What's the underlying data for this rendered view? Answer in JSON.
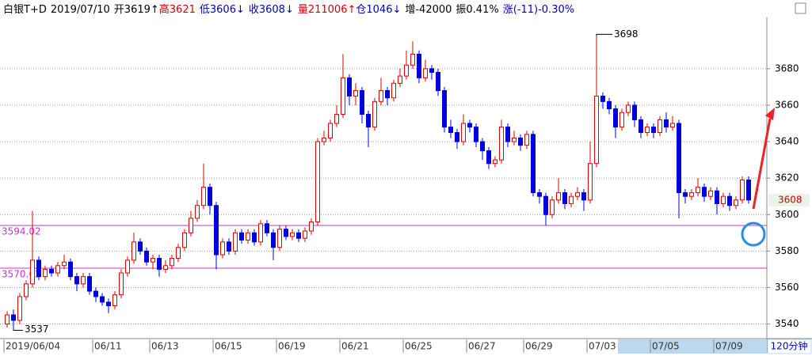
{
  "chart_data": {
    "type": "candlestick",
    "header": [
      {
        "text": "白银T+D",
        "color": "#000000"
      },
      {
        "text": "2019/07/10",
        "color": "#000000"
      },
      {
        "text": "开3619↑",
        "color": "#000000"
      },
      {
        "text": "高3621",
        "color": "#d00000"
      },
      {
        "text": "低3606↓",
        "color": "#0000c0"
      },
      {
        "text": "收3608↓",
        "color": "#0000c0"
      },
      {
        "text": "量211006↑",
        "color": "#d00000"
      },
      {
        "text": "仓1046↓",
        "color": "#0000c0"
      },
      {
        "text": "增-42000",
        "color": "#000000"
      },
      {
        "text": "振0.41%",
        "color": "#000000"
      },
      {
        "text": "涨(-11)-0.30%",
        "color": "#0000c0"
      }
    ],
    "period": "120分钟",
    "up_color": "#e00000",
    "down_color": "#0000dd",
    "ylim": [
      3532,
      3709
    ],
    "yticks": [
      3540,
      3560,
      3580,
      3600,
      3620,
      3640,
      3660,
      3680
    ],
    "grid": true,
    "hlines": [
      3594.02,
      3570.62
    ],
    "hline_color": "#cc33cc",
    "categories": [
      "2019/06/04",
      null,
      null,
      null,
      null,
      null,
      null,
      null,
      null,
      null,
      null,
      null,
      null,
      null,
      "06/11",
      null,
      null,
      null,
      null,
      null,
      null,
      null,
      null,
      "06/13",
      null,
      null,
      null,
      null,
      null,
      null,
      null,
      null,
      null,
      "06/15",
      null,
      null,
      null,
      null,
      null,
      null,
      null,
      null,
      null,
      "06/19",
      null,
      null,
      null,
      null,
      null,
      null,
      null,
      null,
      null,
      "06/21",
      null,
      null,
      null,
      null,
      null,
      null,
      null,
      null,
      null,
      "06/25",
      null,
      null,
      null,
      null,
      null,
      null,
      null,
      null,
      null,
      "06/27",
      null,
      null,
      null,
      null,
      null,
      null,
      null,
      null,
      "06/29",
      null,
      null,
      null,
      null,
      null,
      null,
      null,
      null,
      null,
      "07/03",
      null,
      null,
      null,
      null,
      null,
      null,
      null,
      null,
      null,
      "07/05",
      null,
      null,
      null,
      null,
      null,
      null,
      null,
      null,
      null,
      "07/09",
      null,
      null,
      null,
      null,
      null
    ],
    "open": [
      3540,
      3545,
      3542,
      3555,
      3562,
      3575,
      3566,
      3570,
      3568,
      3572,
      3574,
      3566,
      3562,
      3566,
      3558,
      3555,
      3552,
      3550,
      3556,
      3568,
      3575,
      3585,
      3580,
      3574,
      3576,
      3570,
      3572,
      3576,
      3582,
      3590,
      3598,
      3605,
      3615,
      3605,
      3578,
      3585,
      3580,
      3590,
      3586,
      3590,
      3585,
      3595,
      3590,
      3582,
      3592,
      3588,
      3590,
      3587,
      3591,
      3596,
      3640,
      3642,
      3650,
      3655,
      3675,
      3665,
      3668,
      3655,
      3648,
      3662,
      3668,
      3664,
      3672,
      3676,
      3682,
      3688,
      3675,
      3680,
      3678,
      3668,
      3648,
      3645,
      3640,
      3650,
      3648,
      3640,
      3635,
      3628,
      3630,
      3648,
      3640,
      3642,
      3638,
      3644,
      3612,
      3610,
      3600,
      3608,
      3612,
      3606,
      3610,
      3612,
      3608,
      3628,
      3665,
      3662,
      3658,
      3648,
      3656,
      3660,
      3652,
      3645,
      3648,
      3645,
      3652,
      3648,
      3650,
      3612,
      3610,
      3612,
      3615,
      3610,
      3613,
      3606,
      3610,
      3605,
      3608,
      3619
    ],
    "high": [
      3547,
      3548,
      3557,
      3564,
      3602,
      3577,
      3572,
      3572,
      3574,
      3578,
      3576,
      3568,
      3568,
      3568,
      3560,
      3557,
      3554,
      3558,
      3570,
      3577,
      3590,
      3587,
      3582,
      3578,
      3578,
      3575,
      3578,
      3584,
      3592,
      3602,
      3608,
      3628,
      3617,
      3607,
      3587,
      3587,
      3592,
      3592,
      3592,
      3592,
      3597,
      3597,
      3592,
      3594,
      3594,
      3592,
      3592,
      3593,
      3598,
      3642,
      3646,
      3652,
      3660,
      3688,
      3677,
      3672,
      3670,
      3657,
      3664,
      3675,
      3670,
      3674,
      3680,
      3690,
      3695,
      3690,
      3685,
      3682,
      3680,
      3670,
      3652,
      3647,
      3655,
      3652,
      3650,
      3642,
      3637,
      3632,
      3652,
      3650,
      3646,
      3644,
      3646,
      3646,
      3614,
      3612,
      3610,
      3620,
      3614,
      3612,
      3615,
      3614,
      3640,
      3698,
      3667,
      3664,
      3660,
      3658,
      3662,
      3662,
      3654,
      3650,
      3650,
      3654,
      3656,
      3654,
      3652,
      3614,
      3614,
      3620,
      3617,
      3615,
      3615,
      3612,
      3612,
      3610,
      3621,
      3621
    ],
    "low": [
      3538,
      3537,
      3540,
      3553,
      3560,
      3564,
      3564,
      3566,
      3566,
      3570,
      3564,
      3558,
      3560,
      3556,
      3552,
      3550,
      3546,
      3548,
      3554,
      3566,
      3573,
      3578,
      3572,
      3570,
      3566,
      3568,
      3570,
      3574,
      3580,
      3588,
      3596,
      3603,
      3600,
      3570,
      3576,
      3578,
      3578,
      3584,
      3584,
      3583,
      3583,
      3588,
      3575,
      3580,
      3586,
      3586,
      3585,
      3585,
      3589,
      3594,
      3638,
      3640,
      3648,
      3653,
      3660,
      3660,
      3650,
      3637,
      3646,
      3660,
      3660,
      3662,
      3670,
      3674,
      3680,
      3672,
      3673,
      3674,
      3665,
      3645,
      3642,
      3636,
      3638,
      3645,
      3637,
      3630,
      3625,
      3626,
      3628,
      3637,
      3638,
      3635,
      3636,
      3610,
      3606,
      3594,
      3598,
      3606,
      3603,
      3604,
      3608,
      3602,
      3606,
      3626,
      3658,
      3655,
      3642,
      3646,
      3654,
      3648,
      3642,
      3643,
      3642,
      3643,
      3645,
      3646,
      3598,
      3606,
      3608,
      3610,
      3607,
      3608,
      3600,
      3604,
      3602,
      3603,
      3606,
      3606
    ],
    "close": [
      3545,
      3542,
      3555,
      3562,
      3575,
      3566,
      3570,
      3568,
      3572,
      3574,
      3566,
      3562,
      3566,
      3558,
      3555,
      3552,
      3550,
      3556,
      3568,
      3575,
      3585,
      3580,
      3574,
      3576,
      3570,
      3572,
      3576,
      3582,
      3590,
      3598,
      3605,
      3615,
      3605,
      3578,
      3585,
      3580,
      3590,
      3586,
      3590,
      3585,
      3595,
      3590,
      3582,
      3592,
      3588,
      3590,
      3587,
      3591,
      3596,
      3640,
      3642,
      3650,
      3655,
      3675,
      3665,
      3668,
      3655,
      3648,
      3662,
      3668,
      3664,
      3672,
      3676,
      3682,
      3688,
      3675,
      3680,
      3678,
      3668,
      3648,
      3645,
      3640,
      3650,
      3648,
      3640,
      3635,
      3628,
      3630,
      3648,
      3640,
      3642,
      3638,
      3644,
      3612,
      3610,
      3600,
      3608,
      3612,
      3606,
      3610,
      3612,
      3608,
      3628,
      3665,
      3662,
      3658,
      3648,
      3656,
      3660,
      3652,
      3645,
      3648,
      3645,
      3652,
      3648,
      3650,
      3612,
      3610,
      3612,
      3615,
      3610,
      3613,
      3606,
      3610,
      3605,
      3608,
      3619,
      3608
    ]
  }
}
